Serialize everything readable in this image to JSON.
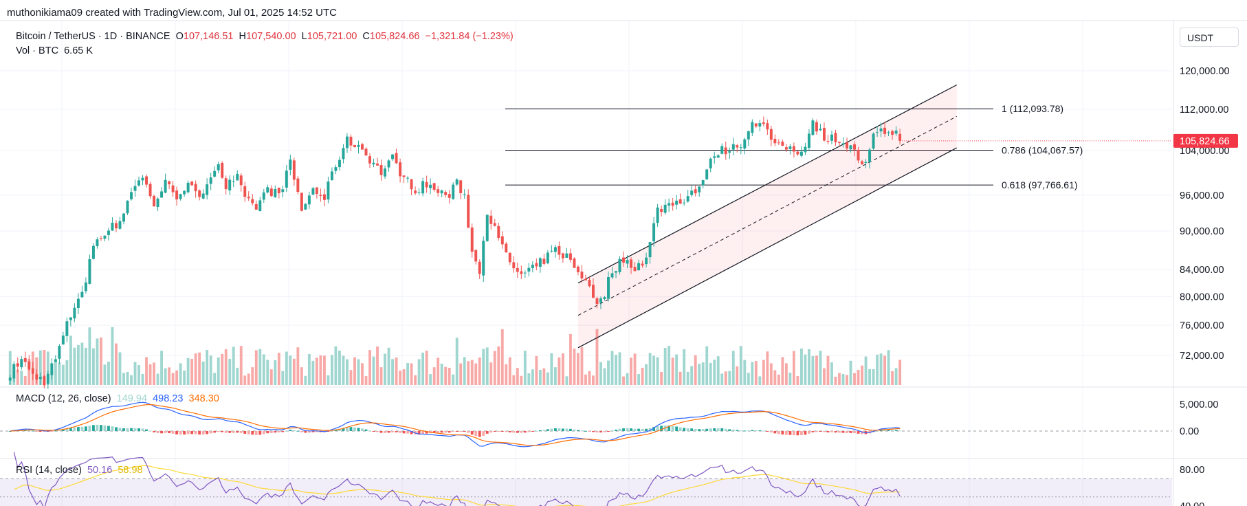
{
  "header": {
    "credit": "muthonikiama09 created with TradingView.com, Jul 01, 2025 14:52 UTC"
  },
  "legend": {
    "symbol": "Bitcoin / TetherUS · 1D · BINANCE",
    "o_label": "O",
    "o_value": "107,146.51",
    "h_label": "H",
    "h_value": "107,540.00",
    "l_label": "L",
    "l_value": "105,721.00",
    "c_label": "C",
    "c_value": "105,824.66",
    "change": "−1,321.84 (−1.23%)",
    "vol_label": "Vol · BTC",
    "vol_value": "6.65 K"
  },
  "currency_button": "USDT",
  "macd_legend": {
    "label": "MACD (12, 26, close)",
    "v1": "149.94",
    "v2": "498.23",
    "v3": "348.30"
  },
  "rsi_legend": {
    "label": "RSI (14, close)",
    "v1": "50.16",
    "v2": "58.98"
  },
  "colors": {
    "up": "#26a69a",
    "down": "#ef5350",
    "vol_up": "#9fd6cf",
    "vol_down": "#f7a9a7",
    "macd": "#2962ff",
    "signal": "#ff6d00",
    "rsi": "#7e57c2",
    "rsi_ma": "#fdd835",
    "last_price": "#f23645"
  },
  "chart_data": {
    "type": "candlestick",
    "interval": "1D",
    "y_axis_ticks": [
      "120,000.00",
      "112,000.00",
      "104,000.00",
      "96,000.00",
      "90,000.00",
      "84,000.00",
      "80,000.00",
      "76,000.00",
      "72,000.00"
    ],
    "ylim": [
      69000,
      124000
    ],
    "log_scale": true,
    "last_price": 105824.66,
    "last_price_label": "105,824.66",
    "fib_levels": [
      {
        "level": 1,
        "price": 112093.78,
        "label": "1 (112,093.78)"
      },
      {
        "level": 0.786,
        "price": 104067.57,
        "label": "0.786 (104,067.57)"
      },
      {
        "level": 0.618,
        "price": 97766.61,
        "label": "0.618 (97,766.61)"
      }
    ],
    "channel": {
      "start_bar": 150,
      "end_bar": 250,
      "lower": [
        73000,
        104500
      ],
      "upper": [
        82000,
        117000
      ]
    },
    "bars": 252,
    "close_path": [
      [
        0,
        69800
      ],
      [
        3,
        71500
      ],
      [
        6,
        69500
      ],
      [
        9,
        68800
      ],
      [
        12,
        71500
      ],
      [
        15,
        76000
      ],
      [
        18,
        80000
      ],
      [
        20,
        82000
      ],
      [
        22,
        88000
      ],
      [
        25,
        90000
      ],
      [
        28,
        91000
      ],
      [
        30,
        93000
      ],
      [
        32,
        97000
      ],
      [
        35,
        99000
      ],
      [
        38,
        94500
      ],
      [
        41,
        98000
      ],
      [
        44,
        96000
      ],
      [
        47,
        98000
      ],
      [
        50,
        95000
      ],
      [
        53,
        100000
      ],
      [
        55,
        101500
      ],
      [
        57,
        97500
      ],
      [
        60,
        99000
      ],
      [
        62,
        95000
      ],
      [
        65,
        94000
      ],
      [
        68,
        97000
      ],
      [
        71,
        96000
      ],
      [
        74,
        101500
      ],
      [
        77,
        93500
      ],
      [
        80,
        97000
      ],
      [
        83,
        95500
      ],
      [
        86,
        101500
      ],
      [
        89,
        105800
      ],
      [
        92,
        105000
      ],
      [
        95,
        102500
      ],
      [
        98,
        100000
      ],
      [
        101,
        102500
      ],
      [
        104,
        99000
      ],
      [
        107,
        97000
      ],
      [
        110,
        98000
      ],
      [
        113,
        96500
      ],
      [
        116,
        96000
      ],
      [
        118,
        98000
      ],
      [
        120,
        96000
      ],
      [
        122,
        86500
      ],
      [
        124,
        84000
      ],
      [
        126,
        93500
      ],
      [
        129,
        88500
      ],
      [
        132,
        85000
      ],
      [
        135,
        83000
      ],
      [
        138,
        84000
      ],
      [
        141,
        85500
      ],
      [
        144,
        87000
      ],
      [
        147,
        86000
      ],
      [
        150,
        83500
      ],
      [
        153,
        82000
      ],
      [
        155,
        78500
      ],
      [
        157,
        80500
      ],
      [
        159,
        84000
      ],
      [
        162,
        85500
      ],
      [
        165,
        84500
      ],
      [
        168,
        85500
      ],
      [
        171,
        93500
      ],
      [
        174,
        94500
      ],
      [
        177,
        95000
      ],
      [
        180,
        96500
      ],
      [
        182,
        97500
      ],
      [
        184,
        100000
      ],
      [
        186,
        103500
      ],
      [
        188,
        104000
      ],
      [
        191,
        104500
      ],
      [
        194,
        106000
      ],
      [
        196,
        110000
      ],
      [
        198,
        109000
      ],
      [
        200,
        108000
      ],
      [
        202,
        104500
      ],
      [
        205,
        104800
      ],
      [
        208,
        103500
      ],
      [
        210,
        105500
      ],
      [
        212,
        109500
      ],
      [
        214,
        107500
      ],
      [
        216,
        106000
      ],
      [
        218,
        106500
      ],
      [
        220,
        105500
      ],
      [
        222,
        104500
      ],
      [
        224,
        102500
      ],
      [
        226,
        101200
      ],
      [
        228,
        106500
      ],
      [
        230,
        107300
      ],
      [
        232,
        107800
      ],
      [
        234,
        107500
      ],
      [
        235,
        105824.66
      ]
    ]
  }
}
